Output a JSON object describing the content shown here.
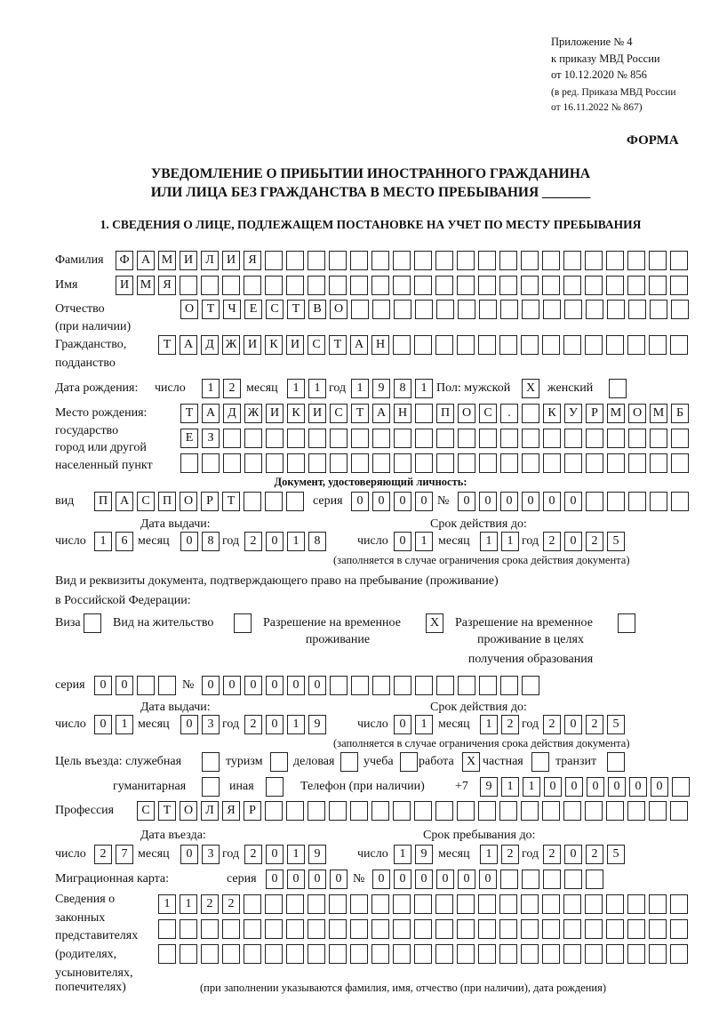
{
  "header": {
    "appendix": "Приложение № 4",
    "order": "к приказу МВД России",
    "date": "от 10.12.2020 № 856",
    "edition1": "(в ред. Приказа МВД России",
    "edition2": "от 16.11.2022 № 867)",
    "form": "ФОРМА",
    "title1": "УВЕДОМЛЕНИЕ О ПРИБЫТИИ ИНОСТРАННОГО ГРАЖДАНИНА",
    "title2": "ИЛИ ЛИЦА БЕЗ ГРАЖДАНСТВА В МЕСТО ПРЕБЫВАНИЯ _______",
    "section1": "1. СВЕДЕНИЯ О ЛИЦЕ, ПОДЛЕЖАЩЕМ ПОСТАНОВКЕ НА УЧЕТ ПО МЕСТУ ПРЕБЫВАНИЯ"
  },
  "labels": {
    "surname": "Фамилия",
    "name": "Имя",
    "patronymic": "Отчество",
    "patronymic2": "(при наличии)",
    "citizenship": "Гражданство,",
    "citizenship2": "подданство",
    "birth_date": "Дата рождения:",
    "day": "число",
    "month": "месяц",
    "year": "год",
    "sex": "Пол: мужской",
    "female": "женский",
    "birthplace": "Место рождения:",
    "state": "государство",
    "city": "город или другой",
    "settlement": "населенный пункт",
    "id_doc": "Документ, удостоверяющий личность:",
    "kind": "вид",
    "series": "серия",
    "number": "№",
    "issue_date": "Дата выдачи:",
    "valid_until": "Срок действия до:",
    "valid_note": "(заполняется в случае ограничения срока действия документа)",
    "stay_doc1": "Вид и реквизиты документа, подтверждающего право на пребывание (проживание)",
    "stay_doc2": "в Российской Федерации:",
    "visa": "Виза",
    "residence": "Вид на жительство",
    "trp1": "Разрешение на временное",
    "trp2": "проживание",
    "trpe1": "Разрешение на временное",
    "trpe2": "проживание в целях",
    "trpe3": "получения образования",
    "purpose": "Цель въезда: служебная",
    "tourism": "туризм",
    "business": "деловая",
    "study": "учеба",
    "work": "работа",
    "private": "частная",
    "transit": "транзит",
    "humanitarian": "гуманитарная",
    "other": "иная",
    "phone": "Телефон (при наличии)",
    "phone_prefix": "+7",
    "profession": "Профессия",
    "entry_date": "Дата въезда:",
    "stay_until": "Срок пребывания до:",
    "migration_card": "Миграционная карта:",
    "reps1": "Сведения о",
    "reps2": "законных",
    "reps3": "представителях",
    "reps4": "(родителях,",
    "reps5": "усыновителях,",
    "reps6": "попечителях)",
    "reps_note": "(при заполнении указываются фамилия, имя, отчество (при наличии), дата рождения)"
  },
  "person": {
    "surname": "ФАМИЛИЯ",
    "name": "ИМЯ",
    "patronymic": "ОТЧЕСТВО",
    "citizenship": "ТАДЖИКИСТАН",
    "birth_day": "12",
    "birth_month": "11",
    "birth_year": "1981",
    "male": "X",
    "female": "",
    "birthplace1": "ТАДЖИКИСТАН ПОС. КУРМОМБ",
    "birthplace2": "ЕЗ",
    "birthplace3": ""
  },
  "id_document": {
    "kind": "ПАСПОРТ",
    "series": "0000",
    "number": "000000",
    "issue_day": "16",
    "issue_month": "08",
    "issue_year": "2018",
    "valid_day": "01",
    "valid_month": "11",
    "valid_year": "2025"
  },
  "stay_document": {
    "visa": "",
    "residence_permit": "",
    "temporary_residence": "X",
    "temporary_residence_education": "",
    "series": "00",
    "number": "000000",
    "issue_day": "01",
    "issue_month": "03",
    "issue_year": "2019",
    "valid_day": "01",
    "valid_month": "12",
    "valid_year": "2025"
  },
  "purpose": {
    "official": "",
    "tourism": "",
    "business": "",
    "study": "",
    "work": "X",
    "private": "",
    "transit": "",
    "humanitarian": "",
    "other": ""
  },
  "phone": "911000000",
  "profession": "СТОЛЯР",
  "entry": {
    "day": "27",
    "month": "03",
    "year": "2019",
    "until_day": "19",
    "until_month": "12",
    "until_year": "2025"
  },
  "migration_card": {
    "series": "0000",
    "number": "000000"
  },
  "representatives": {
    "line1": "1122",
    "line2": "",
    "line3": ""
  }
}
